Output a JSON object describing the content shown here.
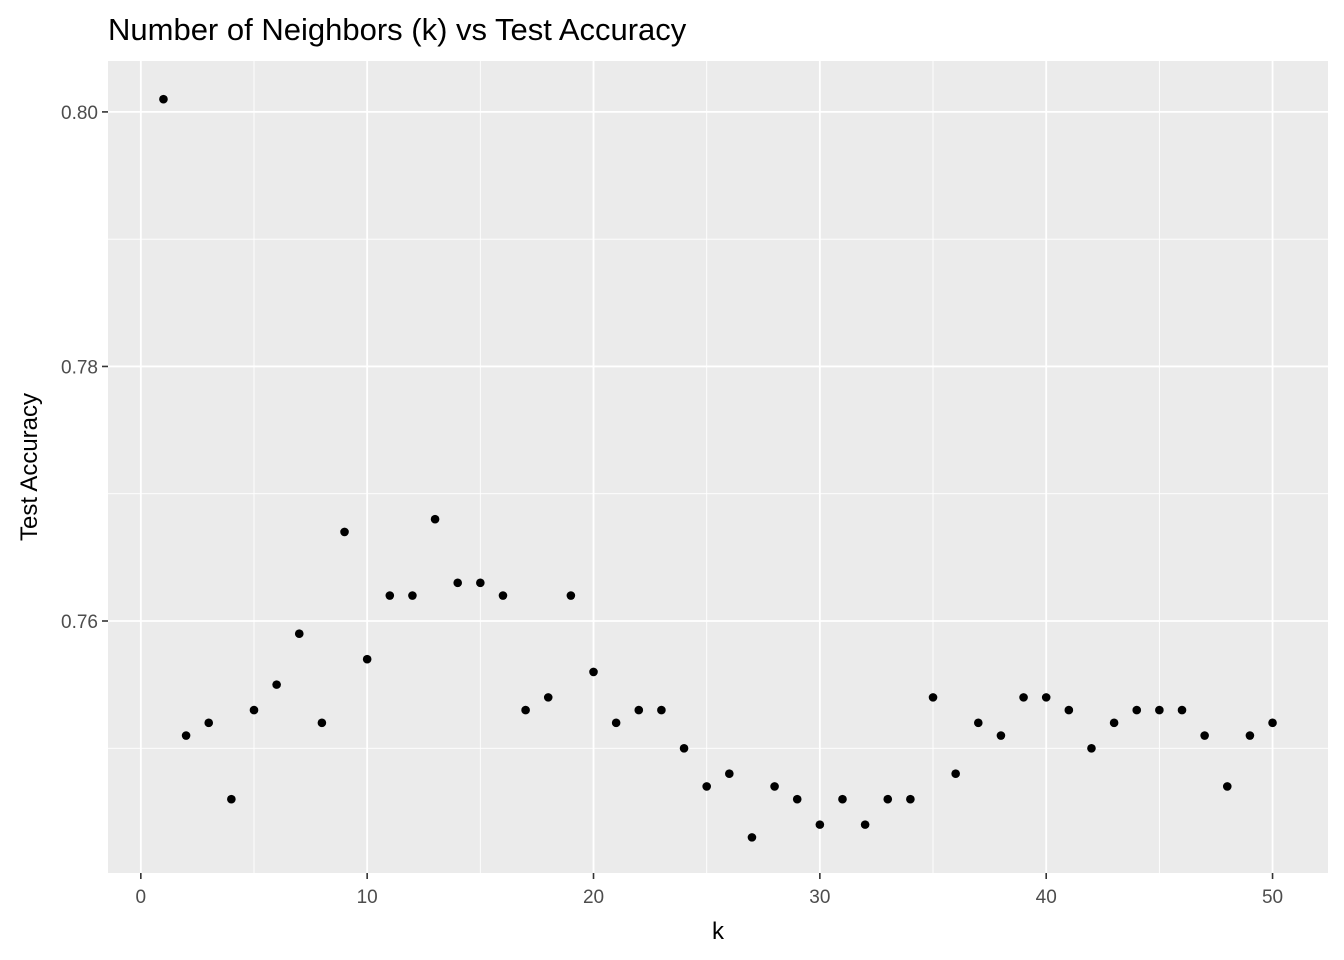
{
  "chart_data": {
    "type": "scatter",
    "title": "Number of Neighbors (k) vs Test Accuracy",
    "xlabel": "k",
    "ylabel": "Test Accuracy",
    "xlim": [
      -1.45,
      52.45
    ],
    "ylim": [
      0.7402,
      0.804
    ],
    "x_ticks": [
      0,
      10,
      20,
      30,
      40,
      50
    ],
    "x_tick_labels": [
      "0",
      "10",
      "20",
      "30",
      "40",
      "50"
    ],
    "x_minor_ticks": [
      5,
      15,
      25,
      35,
      45
    ],
    "y_ticks": [
      0.76,
      0.78,
      0.8
    ],
    "y_tick_labels": [
      "0.76",
      "0.78",
      "0.80"
    ],
    "y_minor_ticks": [
      0.75,
      0.77,
      0.79
    ],
    "grid": true,
    "panel_background": "#ebebeb",
    "grid_color": "#ffffff",
    "point_color": "#000000",
    "x": [
      1,
      2,
      3,
      4,
      5,
      6,
      7,
      8,
      9,
      10,
      11,
      12,
      13,
      14,
      15,
      16,
      17,
      18,
      19,
      20,
      21,
      22,
      23,
      24,
      25,
      26,
      27,
      28,
      29,
      30,
      31,
      32,
      33,
      34,
      35,
      36,
      37,
      38,
      39,
      40,
      41,
      42,
      43,
      44,
      45,
      46,
      47,
      48,
      49,
      50
    ],
    "y": [
      0.801,
      0.751,
      0.752,
      0.746,
      0.753,
      0.755,
      0.759,
      0.752,
      0.767,
      0.757,
      0.762,
      0.762,
      0.768,
      0.763,
      0.763,
      0.762,
      0.753,
      0.754,
      0.762,
      0.756,
      0.752,
      0.753,
      0.753,
      0.75,
      0.747,
      0.748,
      0.743,
      0.747,
      0.746,
      0.744,
      0.746,
      0.744,
      0.746,
      0.746,
      0.754,
      0.748,
      0.752,
      0.751,
      0.754,
      0.754,
      0.753,
      0.75,
      0.752,
      0.753,
      0.753,
      0.753,
      0.751,
      0.747,
      0.751,
      0.752
    ]
  }
}
